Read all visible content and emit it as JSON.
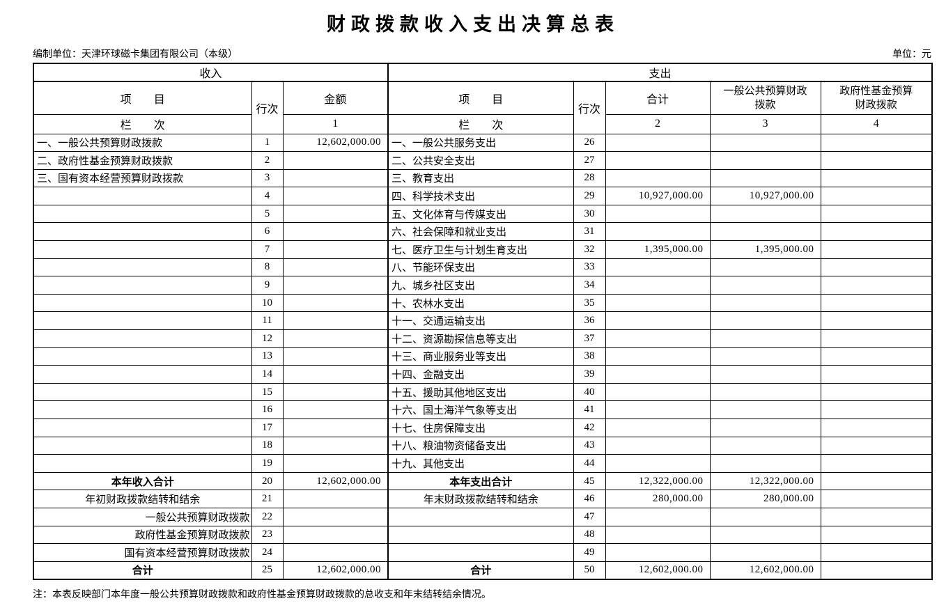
{
  "title": "财政拨款收入支出决算总表",
  "prepared_by": "编制单位：天津环球磁卡集团有限公司（本级）",
  "unit_label": "单位：元",
  "note": "注：本表反映部门本年度一般公共预算财政拨款和政府性基金预算财政拨款的总收支和年末结转结余情况。",
  "table": {
    "headers": {
      "income_section": "收入",
      "expense_section": "支出",
      "item": "项　　目",
      "line_no": "行次",
      "amount": "金额",
      "col_label": "栏　　次",
      "total": "合计",
      "general_budget": "一般公共预算财政\n拨款",
      "gov_fund": "政府性基金预算\n财政拨款",
      "col_1": "1",
      "col_2": "2",
      "col_3": "3",
      "col_4": "4"
    },
    "rows": [
      {
        "income_item": "一、一般公共预算财政拨款",
        "income_no": "1",
        "income_amount": "12,602,000.00",
        "expense_item": "一、一般公共服务支出",
        "expense_no": "26",
        "expense_total": "",
        "expense_general": "",
        "expense_fund": ""
      },
      {
        "income_item": "二、政府性基金预算财政拨款",
        "income_no": "2",
        "income_amount": "",
        "expense_item": "二、公共安全支出",
        "expense_no": "27",
        "expense_total": "",
        "expense_general": "",
        "expense_fund": ""
      },
      {
        "income_item": "三、国有资本经营预算财政拨款",
        "income_no": "3",
        "income_amount": "",
        "expense_item": "三、教育支出",
        "expense_no": "28",
        "expense_total": "",
        "expense_general": "",
        "expense_fund": ""
      },
      {
        "income_item": "",
        "income_no": "4",
        "income_amount": "",
        "expense_item": "四、科学技术支出",
        "expense_no": "29",
        "expense_total": "10,927,000.00",
        "expense_general": "10,927,000.00",
        "expense_fund": ""
      },
      {
        "income_item": "",
        "income_no": "5",
        "income_amount": "",
        "expense_item": "五、文化体育与传媒支出",
        "expense_no": "30",
        "expense_total": "",
        "expense_general": "",
        "expense_fund": ""
      },
      {
        "income_item": "",
        "income_no": "6",
        "income_amount": "",
        "expense_item": "六、社会保障和就业支出",
        "expense_no": "31",
        "expense_total": "",
        "expense_general": "",
        "expense_fund": ""
      },
      {
        "income_item": "",
        "income_no": "7",
        "income_amount": "",
        "expense_item": "七、医疗卫生与计划生育支出",
        "expense_no": "32",
        "expense_total": "1,395,000.00",
        "expense_general": "1,395,000.00",
        "expense_fund": ""
      },
      {
        "income_item": "",
        "income_no": "8",
        "income_amount": "",
        "expense_item": "八、节能环保支出",
        "expense_no": "33",
        "expense_total": "",
        "expense_general": "",
        "expense_fund": ""
      },
      {
        "income_item": "",
        "income_no": "9",
        "income_amount": "",
        "expense_item": "九、城乡社区支出",
        "expense_no": "34",
        "expense_total": "",
        "expense_general": "",
        "expense_fund": ""
      },
      {
        "income_item": "",
        "income_no": "10",
        "income_amount": "",
        "expense_item": "十、农林水支出",
        "expense_no": "35",
        "expense_total": "",
        "expense_general": "",
        "expense_fund": ""
      },
      {
        "income_item": "",
        "income_no": "11",
        "income_amount": "",
        "expense_item": "十一、交通运输支出",
        "expense_no": "36",
        "expense_total": "",
        "expense_general": "",
        "expense_fund": ""
      },
      {
        "income_item": "",
        "income_no": "12",
        "income_amount": "",
        "expense_item": "十二、资源勘探信息等支出",
        "expense_no": "37",
        "expense_total": "",
        "expense_general": "",
        "expense_fund": ""
      },
      {
        "income_item": "",
        "income_no": "13",
        "income_amount": "",
        "expense_item": "十三、商业服务业等支出",
        "expense_no": "38",
        "expense_total": "",
        "expense_general": "",
        "expense_fund": ""
      },
      {
        "income_item": "",
        "income_no": "14",
        "income_amount": "",
        "expense_item": "十四、金融支出",
        "expense_no": "39",
        "expense_total": "",
        "expense_general": "",
        "expense_fund": ""
      },
      {
        "income_item": "",
        "income_no": "15",
        "income_amount": "",
        "expense_item": "十五、援助其他地区支出",
        "expense_no": "40",
        "expense_total": "",
        "expense_general": "",
        "expense_fund": ""
      },
      {
        "income_item": "",
        "income_no": "16",
        "income_amount": "",
        "expense_item": "十六、国土海洋气象等支出",
        "expense_no": "41",
        "expense_total": "",
        "expense_general": "",
        "expense_fund": ""
      },
      {
        "income_item": "",
        "income_no": "17",
        "income_amount": "",
        "expense_item": "十七、住房保障支出",
        "expense_no": "42",
        "expense_total": "",
        "expense_general": "",
        "expense_fund": ""
      },
      {
        "income_item": "",
        "income_no": "18",
        "income_amount": "",
        "expense_item": "十八、粮油物资储备支出",
        "expense_no": "43",
        "expense_total": "",
        "expense_general": "",
        "expense_fund": ""
      },
      {
        "income_item": "",
        "income_no": "19",
        "income_amount": "",
        "expense_item": "十九、其他支出",
        "expense_no": "44",
        "expense_total": "",
        "expense_general": "",
        "expense_fund": ""
      },
      {
        "income_item": "本年收入合计",
        "income_align": "center",
        "income_bold": true,
        "income_no": "20",
        "income_amount": "12,602,000.00",
        "expense_item": "本年支出合计",
        "expense_align": "center",
        "expense_bold": true,
        "expense_no": "45",
        "expense_total": "12,322,000.00",
        "expense_general": "12,322,000.00",
        "expense_fund": ""
      },
      {
        "income_item": "年初财政拨款结转和结余",
        "income_align": "center",
        "income_no": "21",
        "income_amount": "",
        "expense_item": "年末财政拨款结转和结余",
        "expense_align": "center",
        "expense_no": "46",
        "expense_total": "280,000.00",
        "expense_general": "280,000.00",
        "expense_fund": ""
      },
      {
        "income_item": "一般公共预算财政拨款",
        "income_align": "right",
        "income_no": "22",
        "income_amount": "",
        "expense_item": "",
        "expense_no": "47",
        "expense_total": "",
        "expense_general": "",
        "expense_fund": ""
      },
      {
        "income_item": "政府性基金预算财政拨款",
        "income_align": "right",
        "income_no": "23",
        "income_amount": "",
        "expense_item": "",
        "expense_no": "48",
        "expense_total": "",
        "expense_general": "",
        "expense_fund": ""
      },
      {
        "income_item": "国有资本经营预算财政拨款",
        "income_align": "right",
        "income_no": "24",
        "income_amount": "",
        "expense_item": "",
        "expense_no": "49",
        "expense_total": "",
        "expense_general": "",
        "expense_fund": ""
      },
      {
        "income_item": "合计",
        "income_align": "center",
        "income_bold": true,
        "income_no": "25",
        "income_amount": "12,602,000.00",
        "expense_item": "合计",
        "expense_align": "center",
        "expense_bold": true,
        "expense_no": "50",
        "expense_total": "12,602,000.00",
        "expense_general": "12,602,000.00",
        "expense_fund": ""
      }
    ]
  }
}
